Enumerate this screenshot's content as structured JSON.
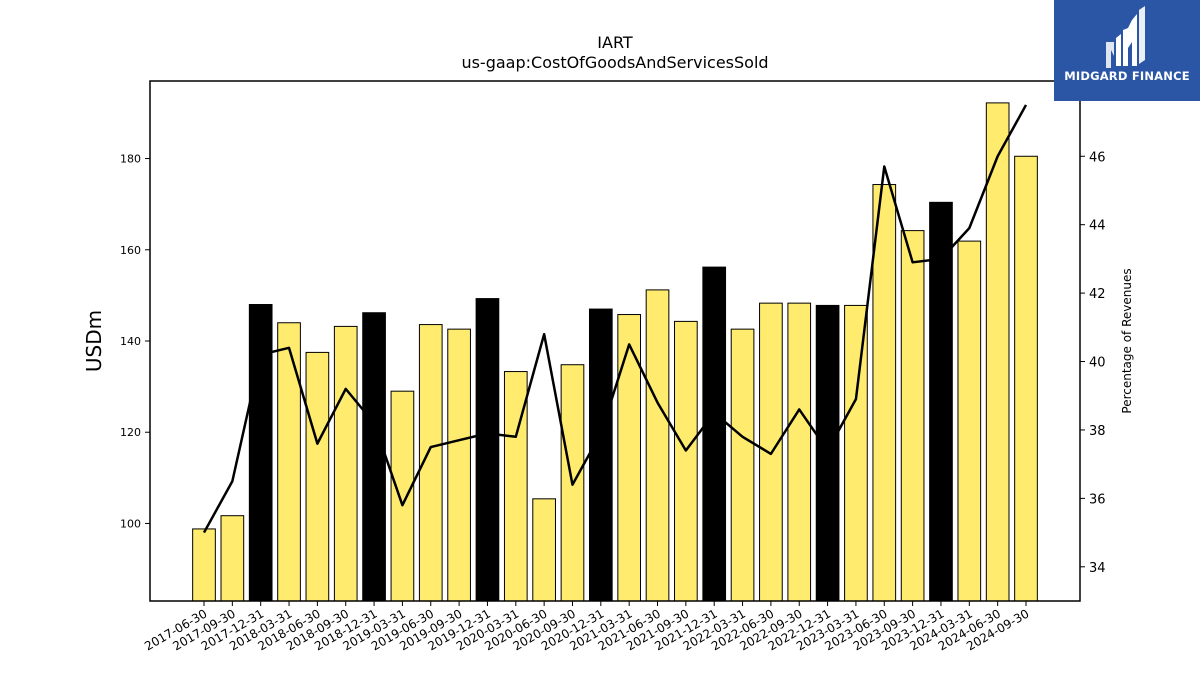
{
  "chart_data": {
    "type": "bar",
    "title": "IART",
    "subtitle": "us-gaap:CostOfGoodsAndServicesSold",
    "ylabel": "USDm",
    "y2label": "Percentage of Revenues",
    "ylim": [
      83,
      197
    ],
    "y2lim": [
      33.0,
      48.2
    ],
    "yticks": [
      100,
      120,
      140,
      160,
      180
    ],
    "y2ticks": [
      34,
      36,
      38,
      40,
      42,
      44,
      46
    ],
    "categories": [
      "2017-06-30",
      "2017-09-30",
      "2017-12-31",
      "2018-03-31",
      "2018-06-30",
      "2018-09-30",
      "2018-12-31",
      "2019-03-31",
      "2019-06-30",
      "2019-09-30",
      "2019-12-31",
      "2020-03-31",
      "2020-06-30",
      "2020-09-30",
      "2020-12-31",
      "2021-03-31",
      "2021-06-30",
      "2021-09-30",
      "2021-12-31",
      "2022-03-31",
      "2022-06-30",
      "2022-09-30",
      "2022-12-31",
      "2023-03-31",
      "2023-06-30",
      "2023-09-30",
      "2023-12-31",
      "2024-03-31",
      "2024-06-30",
      "2024-09-30"
    ],
    "series": [
      {
        "type": "bar",
        "axis": "left",
        "values": [
          98.8,
          101.7,
          148.0,
          144.0,
          137.5,
          143.2,
          146.2,
          129.0,
          143.6,
          142.6,
          149.3,
          133.3,
          105.4,
          134.8,
          147.0,
          145.8,
          151.2,
          144.3,
          156.2,
          142.6,
          148.3,
          148.3,
          147.8,
          147.8,
          174.3,
          164.2,
          170.4,
          161.9,
          192.2,
          180.5
        ],
        "highlight": [
          false,
          false,
          true,
          false,
          false,
          false,
          true,
          false,
          false,
          false,
          true,
          false,
          false,
          false,
          true,
          false,
          false,
          false,
          true,
          false,
          false,
          false,
          true,
          false,
          false,
          false,
          true,
          false,
          false,
          false
        ],
        "color": "#ffec6e",
        "highlight_color": "#000000"
      },
      {
        "type": "line",
        "axis": "right",
        "values": [
          35.0,
          36.5,
          40.2,
          40.4,
          37.6,
          39.2,
          38.2,
          35.8,
          37.5,
          37.7,
          37.9,
          37.8,
          40.8,
          36.4,
          37.9,
          40.5,
          38.8,
          37.4,
          38.5,
          37.8,
          37.3,
          38.6,
          37.4,
          38.9,
          45.7,
          42.9,
          43.0,
          43.9,
          46.0,
          47.5
        ],
        "color": "#000000"
      }
    ],
    "grid": false,
    "legend": "none"
  },
  "logo": {
    "name": "MIDGARD FINANCE"
  }
}
